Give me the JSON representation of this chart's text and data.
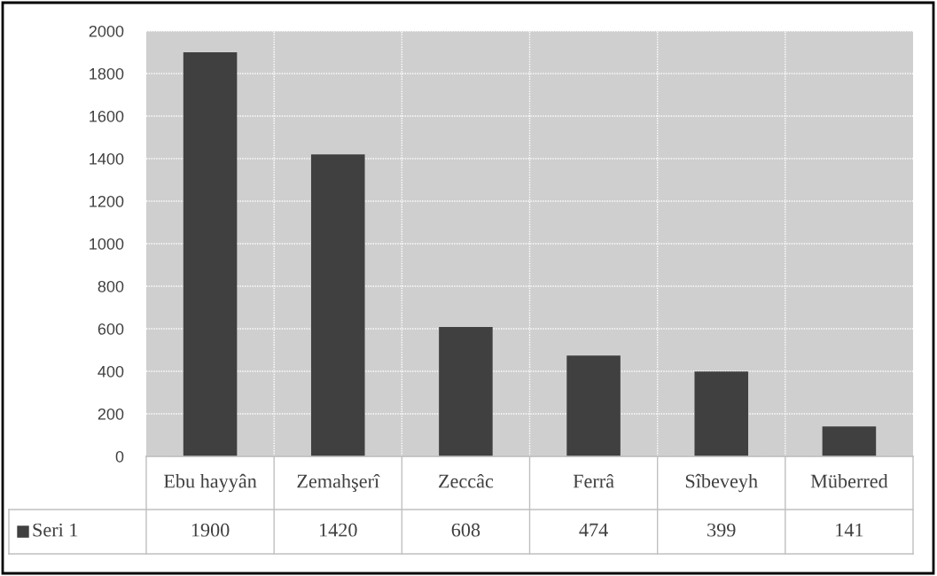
{
  "chart_data": {
    "type": "bar",
    "categories": [
      "Ebu hayyân",
      "Zemahşerî",
      "Zeccâc",
      "Ferrâ",
      "Sîbeveyh",
      "Müberred"
    ],
    "series": [
      {
        "name": "Seri 1",
        "color": "#404040",
        "values": [
          1900,
          1420,
          608,
          474,
          399,
          141
        ]
      }
    ],
    "ylim": [
      0,
      2000
    ],
    "yticks": [
      0,
      200,
      400,
      600,
      800,
      1000,
      1200,
      1400,
      1600,
      1800,
      2000
    ],
    "grid": "y",
    "data_labels": true,
    "legend": "bottom"
  }
}
